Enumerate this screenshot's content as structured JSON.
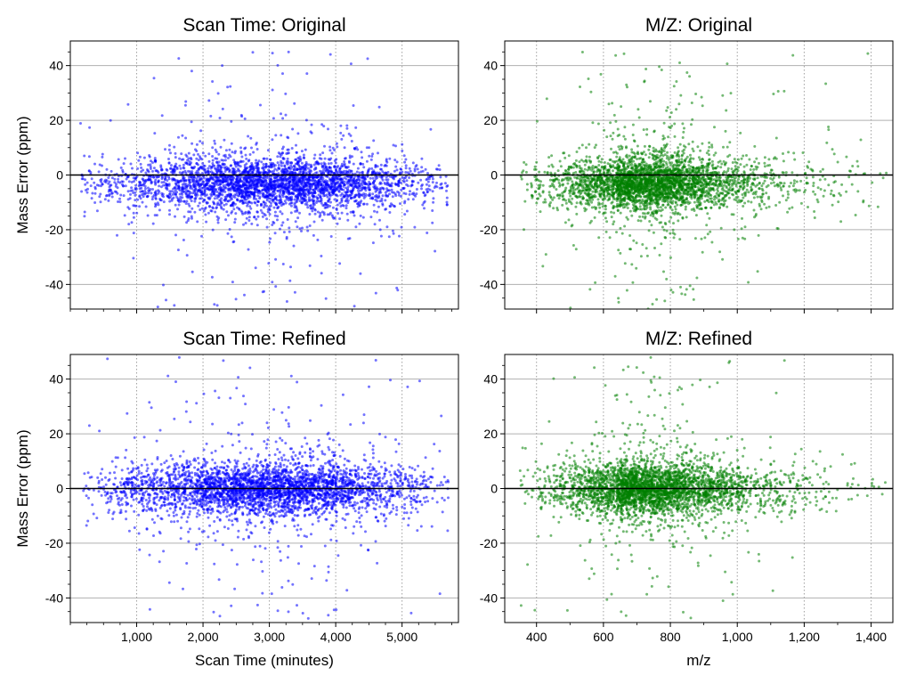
{
  "colors": {
    "scan_points": "#0000ff",
    "mz_points": "#008000",
    "zero_line": "#000000",
    "h_grid": "#b0b0b0",
    "v_grid": "#a0a0a0"
  },
  "point_counts_approx": {
    "scan_time": 3500,
    "mz": 3500
  },
  "chart_data": [
    {
      "type": "scatter",
      "title": "Scan Time: Original",
      "xlabel": "",
      "ylabel": "Mass Error (ppm)",
      "xlim": [
        0,
        5850
      ],
      "ylim": [
        -49,
        49
      ],
      "xticks": [
        1000,
        2000,
        3000,
        4000,
        5000
      ],
      "xtick_labels": [
        "",
        "",
        "",
        "",
        ""
      ],
      "yticks": [
        -40,
        -20,
        0,
        20,
        40
      ],
      "ytick_labels": [
        "-40",
        "-20",
        "0",
        "20",
        "40"
      ],
      "series": [
        {
          "name": "scan-original",
          "color": "#0000ff",
          "x_range": [
            150,
            5700
          ],
          "x_center": 3000,
          "y_center": -3,
          "y_spread": 4.5
        }
      ],
      "grid": "horizontal solid major, vertical dotted major",
      "reference_line": 0
    },
    {
      "type": "scatter",
      "title": "M/Z: Original",
      "xlabel": "",
      "ylabel": "",
      "xlim": [
        305,
        1465
      ],
      "ylim": [
        -49,
        49
      ],
      "xticks": [
        400,
        600,
        800,
        1000,
        1200,
        1400
      ],
      "xtick_labels": [
        "",
        "",
        "",
        "",
        "",
        ""
      ],
      "yticks": [
        -40,
        -20,
        0,
        20,
        40
      ],
      "ytick_labels": [
        "-40",
        "-20",
        "0",
        "20",
        "40"
      ],
      "series": [
        {
          "name": "mz-original",
          "color": "#008000",
          "x_range": [
            350,
            1450
          ],
          "x_mode": 700,
          "y_center": -3,
          "y_spread": 4.5
        }
      ],
      "grid": "horizontal solid major, vertical dotted major",
      "reference_line": 0
    },
    {
      "type": "scatter",
      "title": "Scan Time: Refined",
      "xlabel": "Scan Time (minutes)",
      "ylabel": "Mass Error (ppm)",
      "xlim": [
        0,
        5850
      ],
      "ylim": [
        -49,
        49
      ],
      "xticks": [
        1000,
        2000,
        3000,
        4000,
        5000
      ],
      "xtick_labels": [
        "1,000",
        "2,000",
        "3,000",
        "4,000",
        "5,000"
      ],
      "yticks": [
        -40,
        -20,
        0,
        20,
        40
      ],
      "ytick_labels": [
        "-40",
        "-20",
        "0",
        "20",
        "40"
      ],
      "series": [
        {
          "name": "scan-refined",
          "color": "#0000ff",
          "x_range": [
            150,
            5700
          ],
          "x_center": 3000,
          "y_center": 0,
          "y_spread": 4.5
        }
      ],
      "grid": "horizontal solid major, vertical dotted major",
      "reference_line": 0
    },
    {
      "type": "scatter",
      "title": "M/Z: Refined",
      "xlabel": "m/z",
      "ylabel": "",
      "xlim": [
        305,
        1465
      ],
      "ylim": [
        -49,
        49
      ],
      "xticks": [
        400,
        600,
        800,
        1000,
        1200,
        1400
      ],
      "xtick_labels": [
        "400",
        "600",
        "800",
        "1,000",
        "1,200",
        "1,400"
      ],
      "yticks": [
        -40,
        -20,
        0,
        20,
        40
      ],
      "ytick_labels": [
        "-40",
        "-20",
        "0",
        "20",
        "40"
      ],
      "series": [
        {
          "name": "mz-refined",
          "color": "#008000",
          "x_range": [
            350,
            1450
          ],
          "x_mode": 700,
          "y_center": 0,
          "y_spread": 4.5
        }
      ],
      "grid": "horizontal solid major, vertical dotted major",
      "reference_line": 0
    }
  ]
}
